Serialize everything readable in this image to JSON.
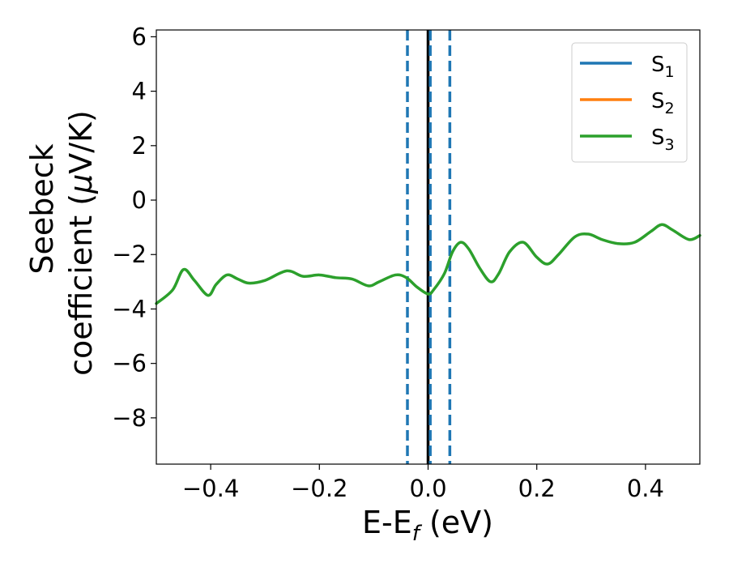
{
  "chart_data": {
    "type": "line",
    "xlabel": "E-E",
    "xlabel_sub": "f",
    "xlabel_unit": " (eV)",
    "ylabel_line1": "Seebeck",
    "ylabel_line2": "coefficient  (",
    "ylabel_mu": "μ",
    "ylabel_unit": "V/K)",
    "xlim": [
      -0.5,
      0.5
    ],
    "ylim": [
      -9.7,
      6.25
    ],
    "xticks": [
      -0.4,
      -0.2,
      0.0,
      0.2,
      0.4
    ],
    "xtick_labels": [
      "−0.4",
      "−0.2",
      "0.0",
      "0.2",
      "0.4"
    ],
    "yticks": [
      -8,
      -6,
      -4,
      -2,
      0,
      2,
      4,
      6
    ],
    "ytick_labels": [
      "−8",
      "−6",
      "−4",
      "−2",
      "0",
      "2",
      "4",
      "6"
    ],
    "grid": false,
    "legend_position": "top-right",
    "series": [
      {
        "name": "S",
        "sub": "1",
        "color": "#1f77b4",
        "x": [],
        "y": []
      },
      {
        "name": "S",
        "sub": "2",
        "color": "#ff7f0e",
        "x": [],
        "y": []
      },
      {
        "name": "S",
        "sub": "3",
        "color": "#2ca02c",
        "x": [
          -0.5,
          -0.47,
          -0.45,
          -0.43,
          -0.405,
          -0.39,
          -0.37,
          -0.35,
          -0.33,
          -0.3,
          -0.26,
          -0.23,
          -0.2,
          -0.17,
          -0.14,
          -0.11,
          -0.09,
          -0.06,
          -0.04,
          -0.02,
          0.0,
          0.01,
          0.03,
          0.045,
          0.06,
          0.075,
          0.095,
          0.115,
          0.13,
          0.15,
          0.175,
          0.2,
          0.22,
          0.24,
          0.27,
          0.295,
          0.32,
          0.35,
          0.38,
          0.41,
          0.43,
          0.45,
          0.48,
          0.5
        ],
        "y": [
          -3.8,
          -3.3,
          -2.55,
          -2.95,
          -3.5,
          -3.1,
          -2.75,
          -2.9,
          -3.05,
          -2.95,
          -2.6,
          -2.8,
          -2.75,
          -2.85,
          -2.9,
          -3.15,
          -3.0,
          -2.75,
          -2.85,
          -3.2,
          -3.45,
          -3.3,
          -2.7,
          -1.9,
          -1.55,
          -1.8,
          -2.5,
          -3.0,
          -2.7,
          -1.9,
          -1.55,
          -2.1,
          -2.35,
          -2.0,
          -1.35,
          -1.25,
          -1.45,
          -1.6,
          -1.55,
          -1.15,
          -0.9,
          -1.1,
          -1.45,
          -1.3
        ]
      }
    ],
    "vlines": [
      {
        "x": 0.0,
        "color": "#000000",
        "style": "solid"
      },
      {
        "x": -0.038,
        "color": "#1f77b4",
        "style": "dashed"
      },
      {
        "x": 0.004,
        "color": "#1f77b4",
        "style": "dashed"
      },
      {
        "x": 0.04,
        "color": "#1f77b4",
        "style": "dashed"
      }
    ]
  }
}
